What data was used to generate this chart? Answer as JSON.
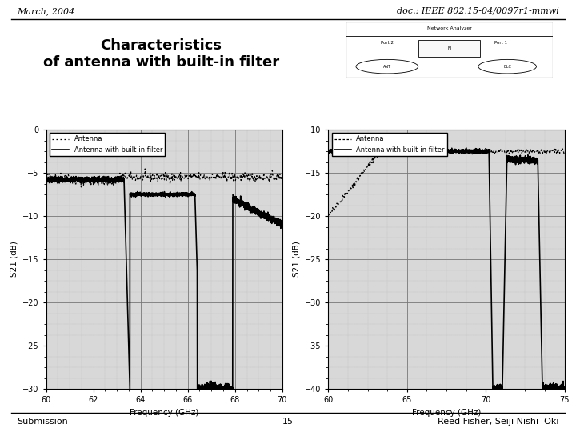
{
  "title": "Characteristics\nof antenna with built-in filter",
  "header_left": "March, 2004",
  "header_right": "doc.: IEEE 802.15-04/0097r1-mmwi",
  "footer_left": "Submission",
  "footer_center": "15",
  "footer_right": "Reed Fisher, Seiji Nishi  Oki",
  "plot1": {
    "xlabel": "Frequency (GHz)",
    "ylabel": "S21 (dB)",
    "xlim": [
      60,
      70
    ],
    "ylim": [
      -30,
      0
    ],
    "yticks": [
      0,
      -5,
      -10,
      -15,
      -20,
      -25,
      -30
    ],
    "xticks": [
      60,
      62,
      64,
      66,
      68,
      70
    ],
    "legend": [
      "Antenna",
      "Antenna with built-in filter"
    ]
  },
  "plot2": {
    "xlabel": "Frequency (GHz)",
    "ylabel": "S21 (dB)",
    "xlim": [
      60,
      75
    ],
    "ylim": [
      -40,
      -10
    ],
    "yticks": [
      -10,
      -15,
      -20,
      -25,
      -30,
      -35,
      -40
    ],
    "xticks": [
      60,
      65,
      70,
      75
    ],
    "legend": [
      "Antenna",
      "Antenna with built-in filter"
    ]
  },
  "bg_color": "#ffffff"
}
